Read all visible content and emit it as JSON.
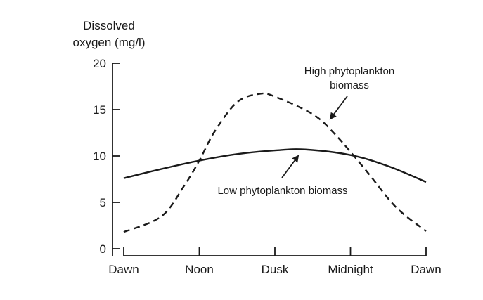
{
  "chart_data": {
    "type": "line",
    "ylabel_lines": [
      "Dissolved",
      "oxygen (mg/l)"
    ],
    "xlabel": "",
    "categories": [
      "Dawn",
      "Noon",
      "Dusk",
      "Midnight",
      "Dawn"
    ],
    "xlim": [
      0,
      4
    ],
    "ylim": [
      0,
      20
    ],
    "yticks": [
      0,
      5,
      10,
      15,
      20
    ],
    "grid": false,
    "series": [
      {
        "name": "High phytoplankton biomass",
        "style": "dashed",
        "color": "#1a1a1a",
        "points": [
          [
            0,
            1.8
          ],
          [
            0.5,
            3.5
          ],
          [
            0.8,
            6.8
          ],
          [
            1,
            9.5
          ],
          [
            1.2,
            12.6
          ],
          [
            1.5,
            15.8
          ],
          [
            1.8,
            16.7
          ],
          [
            2,
            16.4
          ],
          [
            2.5,
            14.5
          ],
          [
            2.8,
            12.3
          ],
          [
            3.2,
            8.5
          ],
          [
            3.6,
            4.5
          ],
          [
            4,
            1.9
          ]
        ]
      },
      {
        "name": "Low phytoplankton biomass",
        "style": "solid",
        "color": "#1a1a1a",
        "points": [
          [
            0,
            7.6
          ],
          [
            0.5,
            8.6
          ],
          [
            1,
            9.5
          ],
          [
            1.5,
            10.2
          ],
          [
            2,
            10.6
          ],
          [
            2.4,
            10.7
          ],
          [
            3,
            10.1
          ],
          [
            3.5,
            8.9
          ],
          [
            4,
            7.2
          ]
        ]
      }
    ],
    "annotations": [
      {
        "text_lines": [
          "High phytoplankton",
          "biomass"
        ],
        "points_to": "High phytoplankton biomass"
      },
      {
        "text_lines": [
          "Low phytoplankton biomass"
        ],
        "points_to": "Low phytoplankton biomass"
      }
    ]
  }
}
